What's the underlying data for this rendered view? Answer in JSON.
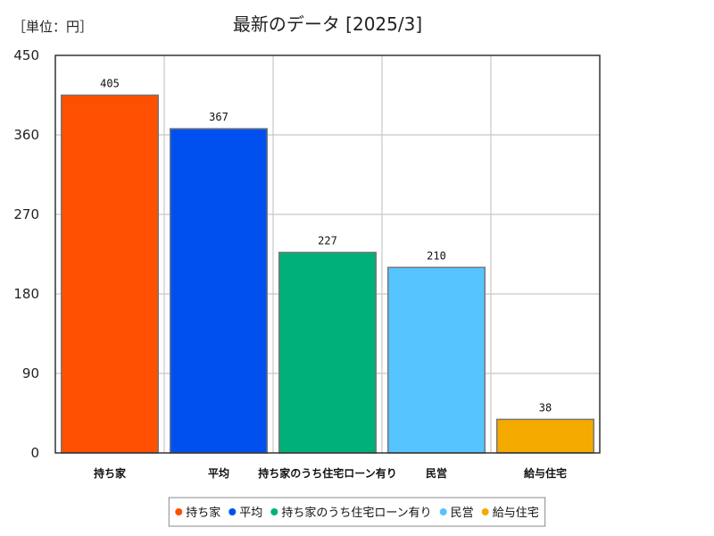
{
  "chart_data": {
    "type": "bar",
    "title": "最新のデータ [2025/3]",
    "unit_label": "［単位：円］",
    "categories": [
      "持ち家",
      "平均",
      "持ち家のうち住宅ローン有り",
      "民営",
      "給与住宅"
    ],
    "values": [
      405,
      367,
      227,
      210,
      38
    ],
    "colors": [
      "#ff4f00",
      "#0050f0",
      "#00b07a",
      "#55c4ff",
      "#f5aa00"
    ],
    "ylim": [
      0,
      450
    ],
    "yticks": [
      0,
      90,
      180,
      270,
      360,
      450
    ],
    "grid": true,
    "legend_position": "bottom",
    "legend": [
      "持ち家",
      "平均",
      "持ち家のうち住宅ローン有り",
      "民営",
      "給与住宅"
    ]
  }
}
